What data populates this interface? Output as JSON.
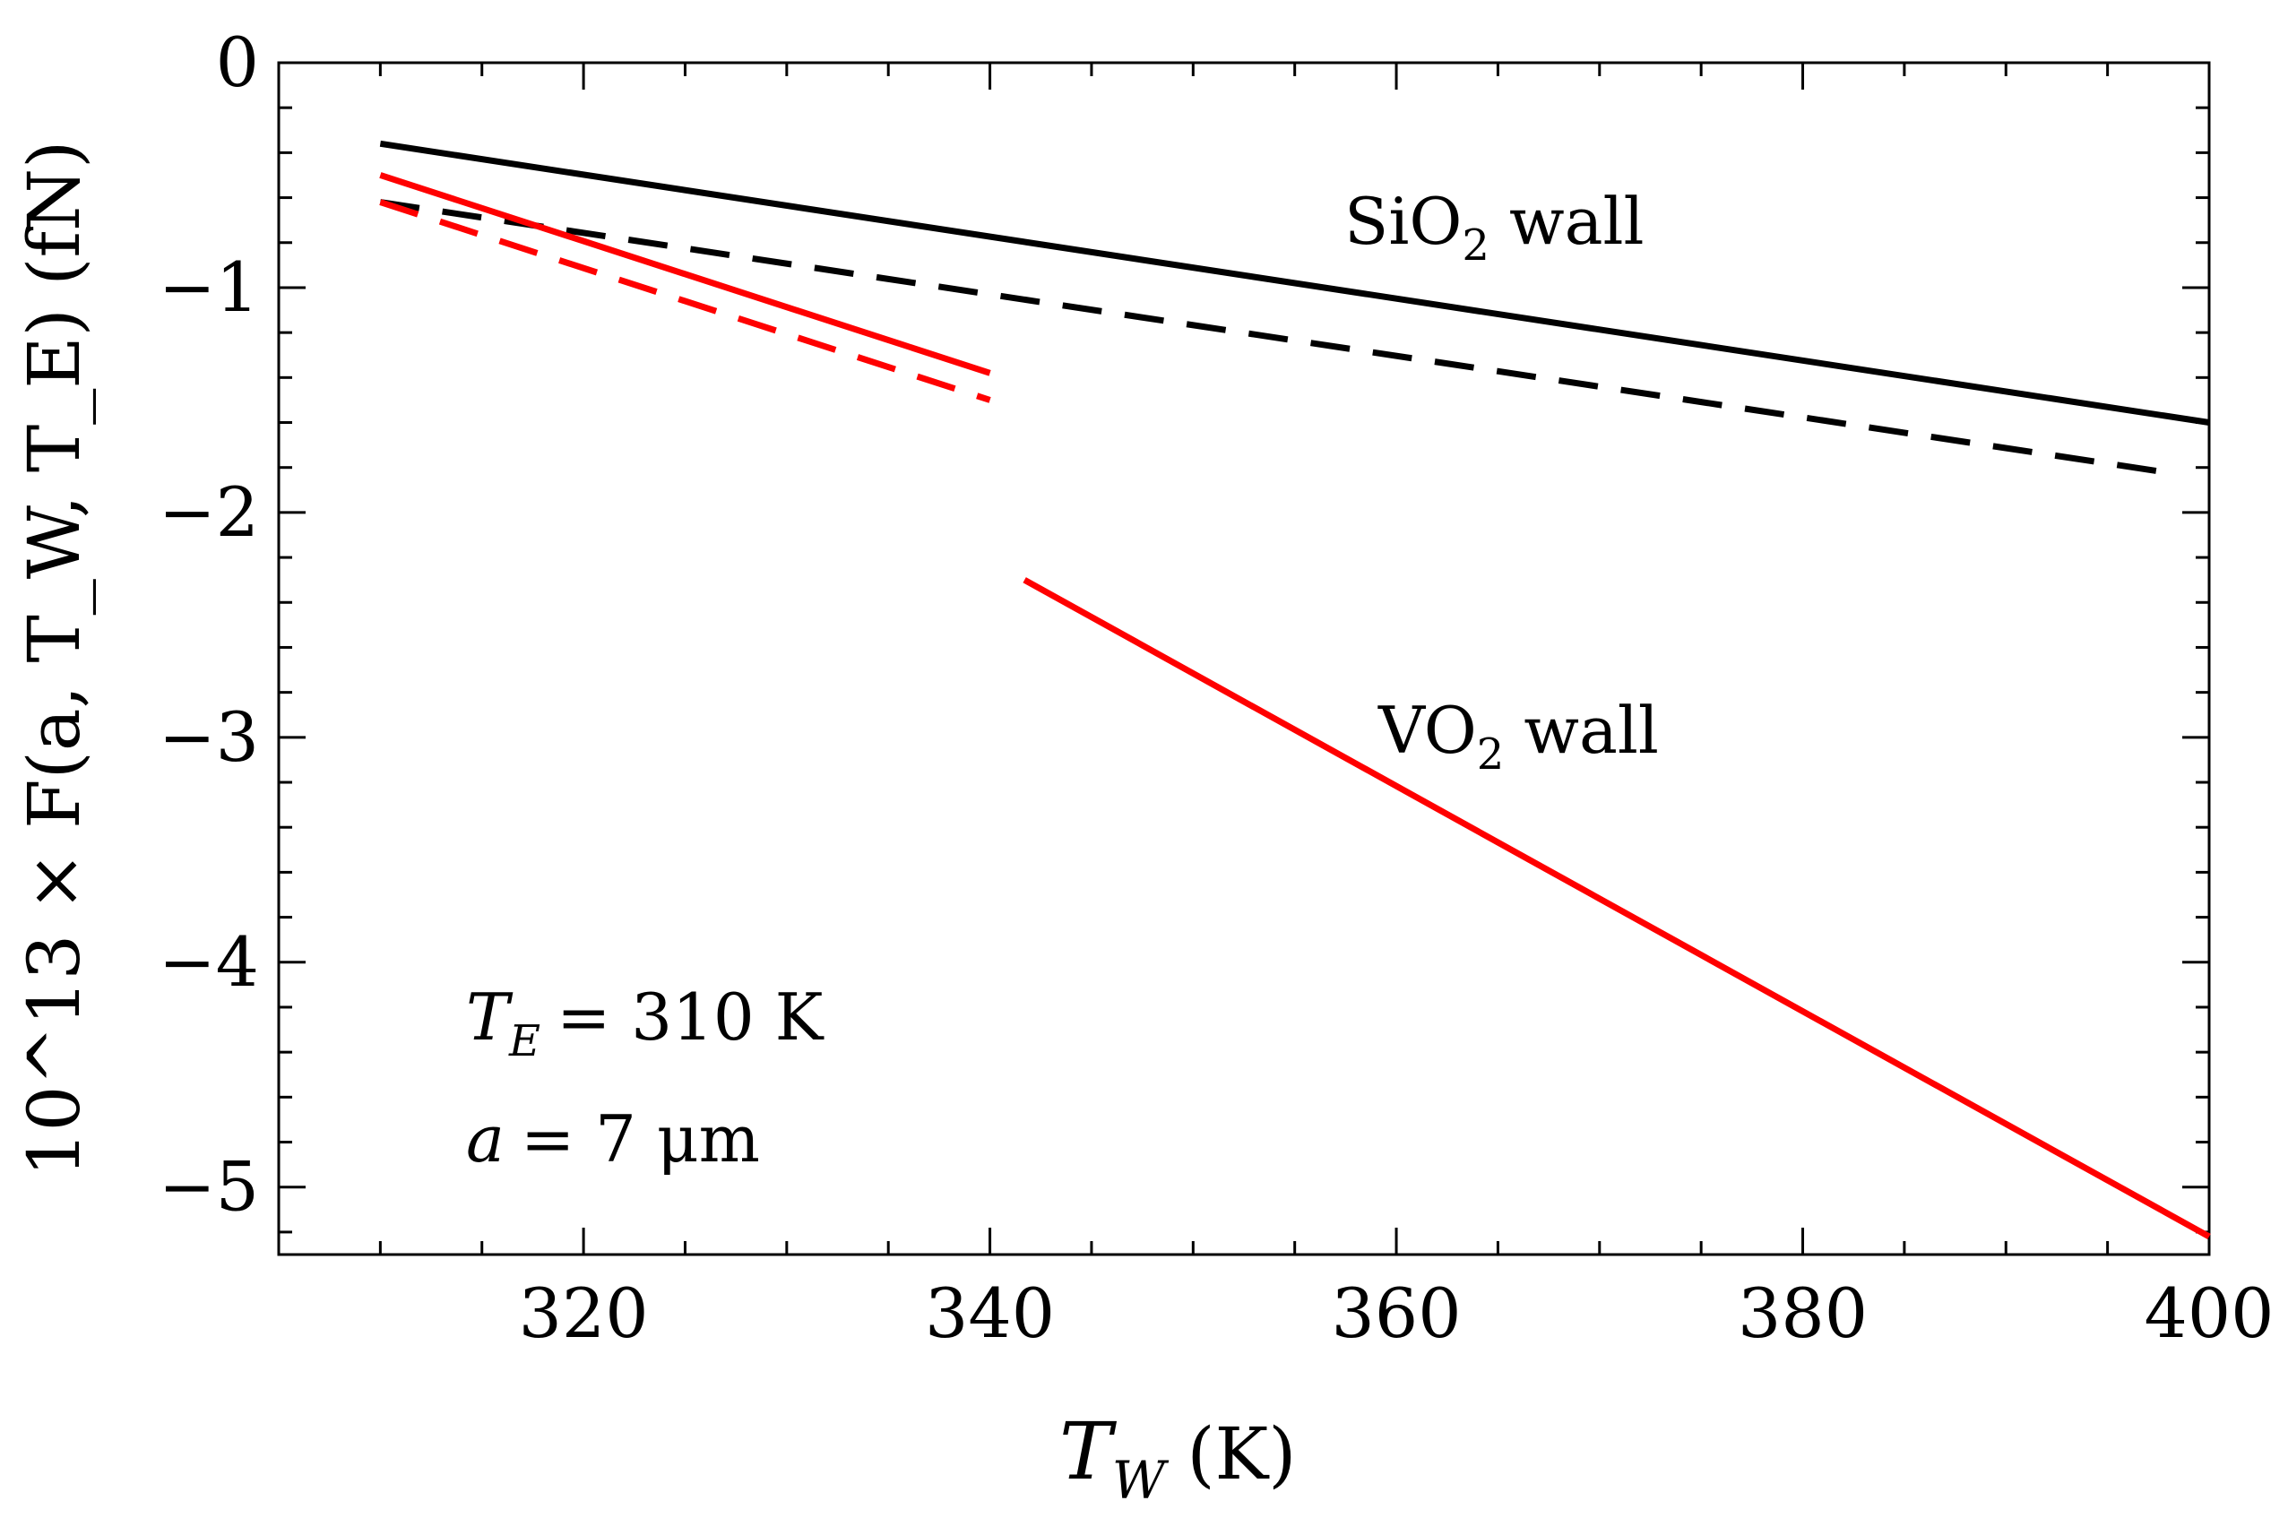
{
  "chart_data": {
    "type": "line",
    "xlabel": "T_W (K)",
    "xlabel_main": "T",
    "xlabel_sub": "W",
    "xlabel_unit": "(K)",
    "ylabel": "10^13 × F(a, T_W, T_E) (fN)",
    "xlim": [
      305,
      400
    ],
    "ylim": [
      -5.3,
      0
    ],
    "x_ticks": [
      320,
      340,
      360,
      380,
      400
    ],
    "x_tick_labels": [
      "320",
      "340",
      "360",
      "380",
      "400"
    ],
    "y_ticks": [
      0,
      -1,
      -2,
      -3,
      -4,
      -5
    ],
    "y_tick_labels": [
      "0",
      "−1",
      "−2",
      "−3",
      "−4",
      "−5"
    ],
    "series": [
      {
        "name": "SiO2 wall, solid",
        "color": "#000000",
        "style": "solid",
        "x": [
          310,
          400
        ],
        "y": [
          -0.36,
          -1.6
        ]
      },
      {
        "name": "SiO2 wall, dashed",
        "color": "#000000",
        "style": "dashed",
        "x": [
          310,
          398.5
        ],
        "y": [
          -0.62,
          -1.83
        ]
      },
      {
        "name": "VO2 wall, solid (below transition)",
        "color": "#ff0000",
        "style": "solid",
        "x": [
          310,
          340
        ],
        "y": [
          -0.5,
          -1.38
        ]
      },
      {
        "name": "VO2 wall, dashed (below transition)",
        "color": "#ff0000",
        "style": "dashed",
        "x": [
          310,
          340
        ],
        "y": [
          -0.62,
          -1.5
        ]
      },
      {
        "name": "VO2 wall, solid (above transition)",
        "color": "#ff0000",
        "style": "solid",
        "x": [
          341.7,
          400
        ],
        "y": [
          -2.3,
          -5.22
        ]
      }
    ],
    "annotations": {
      "sio2_main": "SiO",
      "sio2_sub": "2",
      "sio2_rest": "wall",
      "vo2_main": "VO",
      "vo2_sub": "2",
      "vo2_rest": "wall",
      "temp_main": "T",
      "temp_sub": "E",
      "temp_rest": "= 310 K",
      "dist_main": "a",
      "dist_rest": "= 7 μm"
    }
  }
}
